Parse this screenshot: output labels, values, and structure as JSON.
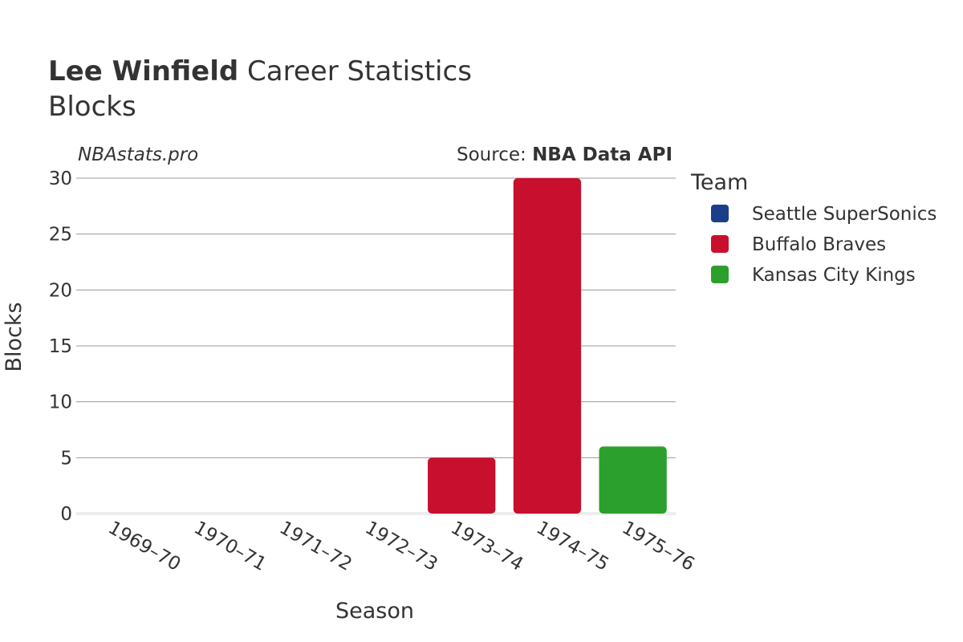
{
  "header": {
    "player_name": "Lee Winfield",
    "title_rest": " Career Statistics",
    "subtitle": "Blocks"
  },
  "watermark": "NBAstats.pro",
  "source": {
    "prefix": "Source: ",
    "name": "NBA Data API"
  },
  "legend": {
    "title": "Team",
    "placement": "right",
    "items": [
      {
        "label": "Seattle SuperSonics",
        "color": "#1a3e8a"
      },
      {
        "label": "Buffalo Braves",
        "color": "#c8102e"
      },
      {
        "label": "Kansas City Kings",
        "color": "#2ca02c"
      }
    ]
  },
  "chart_data": {
    "type": "bar",
    "title": "Lee Winfield Career Statistics",
    "subtitle": "Blocks",
    "xlabel": "Season",
    "ylabel": "Blocks",
    "categories": [
      "1969–70",
      "1970–71",
      "1971–72",
      "1972–73",
      "1973–74",
      "1974–75",
      "1975–76"
    ],
    "ylim": [
      0,
      30
    ],
    "yticks": [
      0,
      5,
      10,
      15,
      20,
      25,
      30
    ],
    "grid": true,
    "series": [
      {
        "name": "Seattle SuperSonics",
        "color": "#1a3e8a",
        "values": [
          0,
          0,
          0,
          0,
          null,
          null,
          null
        ]
      },
      {
        "name": "Buffalo Braves",
        "color": "#c8102e",
        "values": [
          null,
          null,
          null,
          null,
          5,
          30,
          null
        ]
      },
      {
        "name": "Kansas City Kings",
        "color": "#2ca02c",
        "values": [
          null,
          null,
          null,
          null,
          null,
          null,
          6
        ]
      }
    ]
  }
}
